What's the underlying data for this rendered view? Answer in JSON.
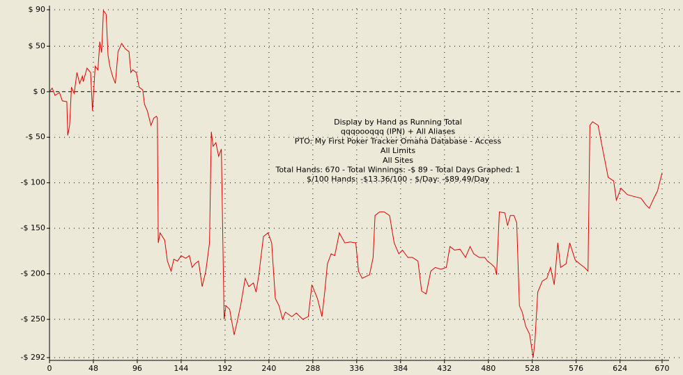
{
  "chart_data": {
    "type": "line",
    "annotations": [
      "Display by Hand as Running Total",
      "qqqoooqqq (IPN) + All Aliases",
      "PTO: My First Poker Tracker Omaha Database - Access",
      "All Limits",
      "All Sites",
      "Total Hands: 670 - Total Winnings: -$ 89 - Total Days Graphed: 1",
      "$/100 Hands: -$13.36/100 - $/Day: -$89.49/Day"
    ],
    "color": "#e00000",
    "grid": true,
    "xlim": [
      0,
      670
    ],
    "ylim": [
      -292,
      90
    ],
    "xticks": [
      0,
      48,
      96,
      144,
      192,
      240,
      288,
      336,
      384,
      432,
      480,
      528,
      576,
      624,
      670
    ],
    "yticks": [
      {
        "value": 90,
        "label": "$ 90"
      },
      {
        "value": 50,
        "label": "$ 50"
      },
      {
        "value": 0,
        "label": "$ 0"
      },
      {
        "value": -50,
        "label": "-$ 50"
      },
      {
        "value": -100,
        "label": "-$ 100"
      },
      {
        "value": -150,
        "label": "-$ 150"
      },
      {
        "value": -200,
        "label": "-$ 200"
      },
      {
        "value": -250,
        "label": "-$ 250"
      },
      {
        "value": -292,
        "label": "-$ 292"
      }
    ],
    "x": [
      0,
      3,
      6,
      11,
      14,
      19,
      20,
      22,
      24,
      27,
      30,
      33,
      36,
      37,
      41,
      45,
      47,
      50,
      53,
      55,
      57,
      59,
      62,
      64,
      66,
      69,
      72,
      75,
      79,
      83,
      87,
      89,
      91,
      95,
      98,
      102,
      104,
      107,
      111,
      114,
      117,
      118,
      119,
      121,
      126,
      129,
      133,
      136,
      140,
      144,
      149,
      153,
      156,
      159,
      163,
      167,
      171,
      175,
      177,
      179,
      182,
      185,
      188,
      191,
      193,
      197,
      202,
      205,
      209,
      214,
      218,
      223,
      226,
      229,
      234,
      239,
      243,
      247,
      251,
      255,
      258,
      265,
      270,
      277,
      283,
      287,
      293,
      298,
      301,
      304,
      308,
      312,
      317,
      323,
      329,
      335,
      338,
      342,
      350,
      354,
      356,
      361,
      366,
      372,
      377,
      382,
      386,
      392,
      397,
      403,
      407,
      412,
      417,
      422,
      428,
      434,
      438,
      443,
      449,
      455,
      460,
      464,
      470,
      476,
      479,
      483,
      487,
      489,
      492,
      498,
      501,
      504,
      508,
      511,
      514,
      517,
      521,
      525,
      529,
      531,
      534,
      539,
      544,
      548,
      552,
      556,
      559,
      565,
      569,
      575,
      580,
      585,
      589,
      591,
      594,
      600,
      605,
      611,
      617,
      620,
      625,
      632,
      639,
      647,
      652,
      656,
      661,
      665,
      670
    ],
    "values": [
      0,
      4,
      -4,
      -1,
      -10,
      -11,
      -48,
      -37,
      5,
      -2,
      21,
      9,
      17,
      11,
      26,
      21,
      -21,
      28,
      24,
      55,
      43,
      89,
      85,
      40,
      28,
      17,
      9,
      44,
      53,
      47,
      44,
      21,
      24,
      21,
      5,
      2,
      -14,
      -21,
      -37,
      -29,
      -27,
      -29,
      -166,
      -155,
      -163,
      -186,
      -197,
      -184,
      -186,
      -180,
      -183,
      -180,
      -193,
      -189,
      -186,
      -214,
      -197,
      -166,
      -44,
      -60,
      -56,
      -71,
      -63,
      -250,
      -235,
      -239,
      -267,
      -254,
      -235,
      -205,
      -214,
      -210,
      -220,
      -201,
      -159,
      -155,
      -166,
      -227,
      -235,
      -250,
      -242,
      -247,
      -243,
      -250,
      -247,
      -212,
      -227,
      -247,
      -220,
      -189,
      -178,
      -180,
      -155,
      -166,
      -165,
      -166,
      -197,
      -205,
      -201,
      -182,
      -136,
      -132,
      -132,
      -136,
      -166,
      -178,
      -174,
      -182,
      -182,
      -186,
      -219,
      -222,
      -197,
      -193,
      -195,
      -193,
      -170,
      -174,
      -173,
      -182,
      -170,
      -178,
      -182,
      -182,
      -186,
      -189,
      -193,
      -201,
      -132,
      -133,
      -147,
      -136,
      -136,
      -144,
      -235,
      -242,
      -258,
      -266,
      -292,
      -273,
      -220,
      -208,
      -205,
      -193,
      -212,
      -166,
      -193,
      -189,
      -166,
      -185,
      -189,
      -193,
      -197,
      -37,
      -33,
      -37,
      -63,
      -94,
      -98,
      -119,
      -106,
      -113,
      -115,
      -117,
      -124,
      -128,
      -117,
      -109,
      -89
    ]
  }
}
